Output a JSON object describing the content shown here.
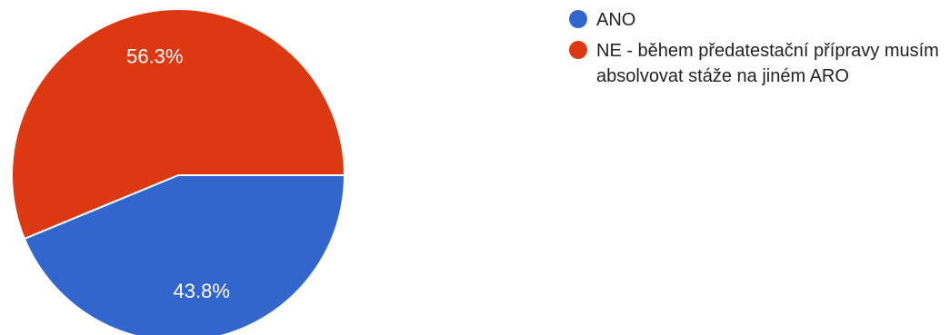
{
  "chart_data": {
    "type": "pie",
    "slices": [
      {
        "label": "ANO",
        "value": 43.8,
        "display": "43.8%",
        "color": "#3366cc"
      },
      {
        "label": "NE - během předatestační přípravy musím absolvovat stáže na jiném ARO",
        "value": 56.3,
        "display": "56.3%",
        "color": "#dc3912"
      }
    ],
    "legend_position": "right"
  }
}
